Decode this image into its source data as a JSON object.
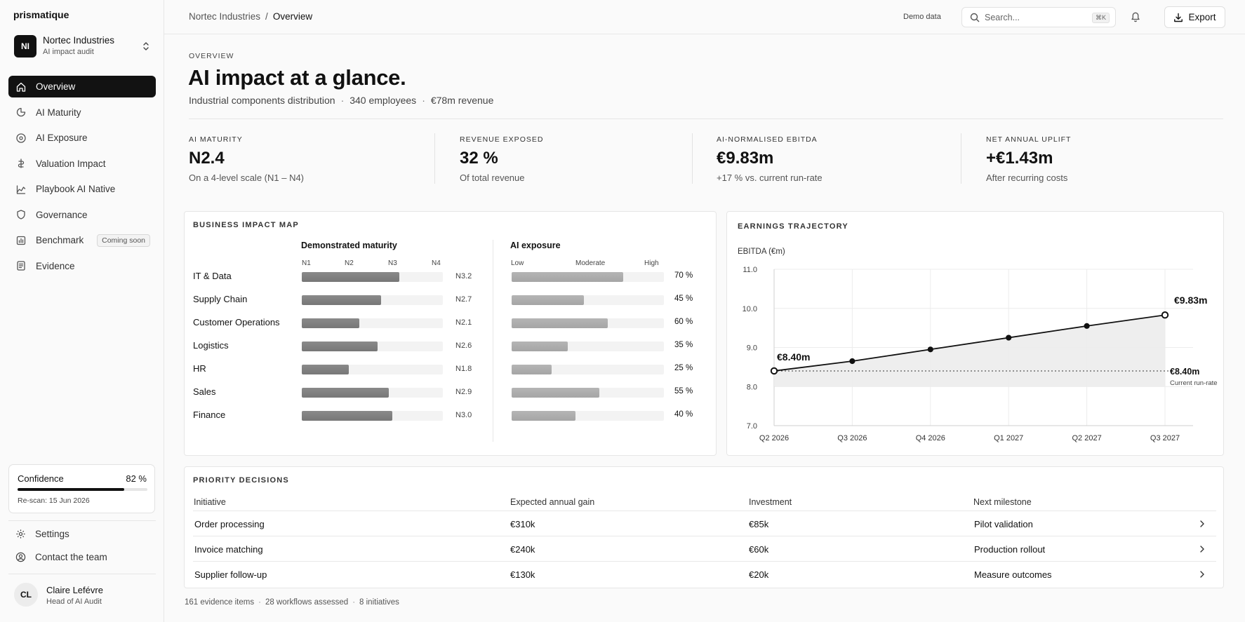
{
  "brand": "prismatique",
  "org": {
    "initials": "NI",
    "name": "Nortec Industries",
    "subtitle": "AI impact audit"
  },
  "nav": [
    {
      "label": "Overview",
      "icon": "home-icon",
      "active": true
    },
    {
      "label": "AI Maturity",
      "icon": "gauge-icon"
    },
    {
      "label": "AI Exposure",
      "icon": "target-icon"
    },
    {
      "label": "Valuation Impact",
      "icon": "valuation-icon"
    },
    {
      "label": "Playbook AI Native",
      "icon": "playbook-icon"
    },
    {
      "label": "Governance",
      "icon": "shield-icon"
    },
    {
      "label": "Benchmark",
      "icon": "chart-icon",
      "badge": "Coming soon"
    },
    {
      "label": "Evidence",
      "icon": "document-icon"
    }
  ],
  "confidence": {
    "label": "Confidence",
    "value": "82 %",
    "fraction": 0.82,
    "rescan": "Re-scan: 15 Jun 2026"
  },
  "sidebar_links": {
    "settings": "Settings",
    "contact": "Contact the team"
  },
  "user": {
    "initials": "CL",
    "name": "Claire Lefévre",
    "role": "Head of AI Audit"
  },
  "topbar": {
    "breadcrumb_parent": "Nortec Industries",
    "breadcrumb_sep": "/",
    "breadcrumb_current": "Overview",
    "demo_label": "Demo data",
    "search_placeholder": "Search...",
    "search_kbd": "⌘K",
    "export_label": "Export"
  },
  "header": {
    "eyebrow": "OVERVIEW",
    "title": "AI impact at a glance.",
    "sub1": "Industrial components distribution",
    "sub2": "340 employees",
    "sub3": "€78m revenue",
    "sep": "·"
  },
  "kpis": [
    {
      "label": "AI Maturity",
      "value": "N2.4",
      "sub": "On a 4-level scale (N1 – N4)"
    },
    {
      "label": "Revenue exposed",
      "value": "32 %",
      "sub": "Of total revenue"
    },
    {
      "label": "AI-normalised EBITDA",
      "value": "€9.83m",
      "sub": "+17 % vs. current run-rate"
    },
    {
      "label": "Net annual uplift",
      "value": "+€1.43m",
      "sub": "After recurring costs"
    }
  ],
  "impact_map": {
    "title": "BUSINESS IMPACT MAP",
    "maturity_header": "Demonstrated maturity",
    "maturity_ticks": [
      "N1",
      "N2",
      "N3",
      "N4"
    ],
    "exposure_header": "AI exposure",
    "exposure_ticks": [
      "Low",
      "Moderate",
      "High"
    ],
    "rows": [
      {
        "label": "IT & Data",
        "maturity": 3.2,
        "maturity_label": "N3.2",
        "exposure": 70,
        "exposure_label": "70 %"
      },
      {
        "label": "Supply Chain",
        "maturity": 2.7,
        "maturity_label": "N2.7",
        "exposure": 45,
        "exposure_label": "45 %"
      },
      {
        "label": "Customer Operations",
        "maturity": 2.1,
        "maturity_label": "N2.1",
        "exposure": 60,
        "exposure_label": "60 %"
      },
      {
        "label": "Logistics",
        "maturity": 2.6,
        "maturity_label": "N2.6",
        "exposure": 35,
        "exposure_label": "35 %"
      },
      {
        "label": "HR",
        "maturity": 1.8,
        "maturity_label": "N1.8",
        "exposure": 25,
        "exposure_label": "25 %"
      },
      {
        "label": "Sales",
        "maturity": 2.9,
        "maturity_label": "N2.9",
        "exposure": 55,
        "exposure_label": "55 %"
      },
      {
        "label": "Finance",
        "maturity": 3.0,
        "maturity_label": "N3.0",
        "exposure": 40,
        "exposure_label": "40 %"
      }
    ]
  },
  "chart_data": {
    "type": "line",
    "title": "EARNINGS TRAJECTORY",
    "ylabel": "EBITDA (€m)",
    "categories": [
      "Q2 2026",
      "Q3 2026",
      "Q4 2026",
      "Q1 2027",
      "Q2 2027",
      "Q3 2027"
    ],
    "ylim": [
      7.0,
      11.0
    ],
    "yticks": [
      "7.0",
      "8.0",
      "9.0",
      "10.0",
      "11.0"
    ],
    "grid": true,
    "series": [
      {
        "values": [
          8.4,
          8.65,
          8.95,
          9.25,
          9.55,
          9.83
        ]
      }
    ],
    "baseline": {
      "value": 8.4,
      "label": "€8.40m",
      "sublabel": "Current run-rate"
    },
    "start_label": "€8.40m",
    "end_label": "€9.83m"
  },
  "priority": {
    "title": "PRIORITY DECISIONS",
    "headers": [
      "Initiative",
      "Expected annual gain",
      "Investment",
      "Next milestone"
    ],
    "rows": [
      {
        "initiative": "Order processing",
        "gain": "€310k",
        "investment": "€85k",
        "milestone": "Pilot validation"
      },
      {
        "initiative": "Invoice matching",
        "gain": "€240k",
        "investment": "€60k",
        "milestone": "Production rollout"
      },
      {
        "initiative": "Supplier follow-up",
        "gain": "€130k",
        "investment": "€20k",
        "milestone": "Measure outcomes"
      }
    ]
  },
  "footer": {
    "evidence": "161 evidence items",
    "workflows": "28 workflows assessed",
    "initiatives": "8 initiatives",
    "sep": "·"
  }
}
